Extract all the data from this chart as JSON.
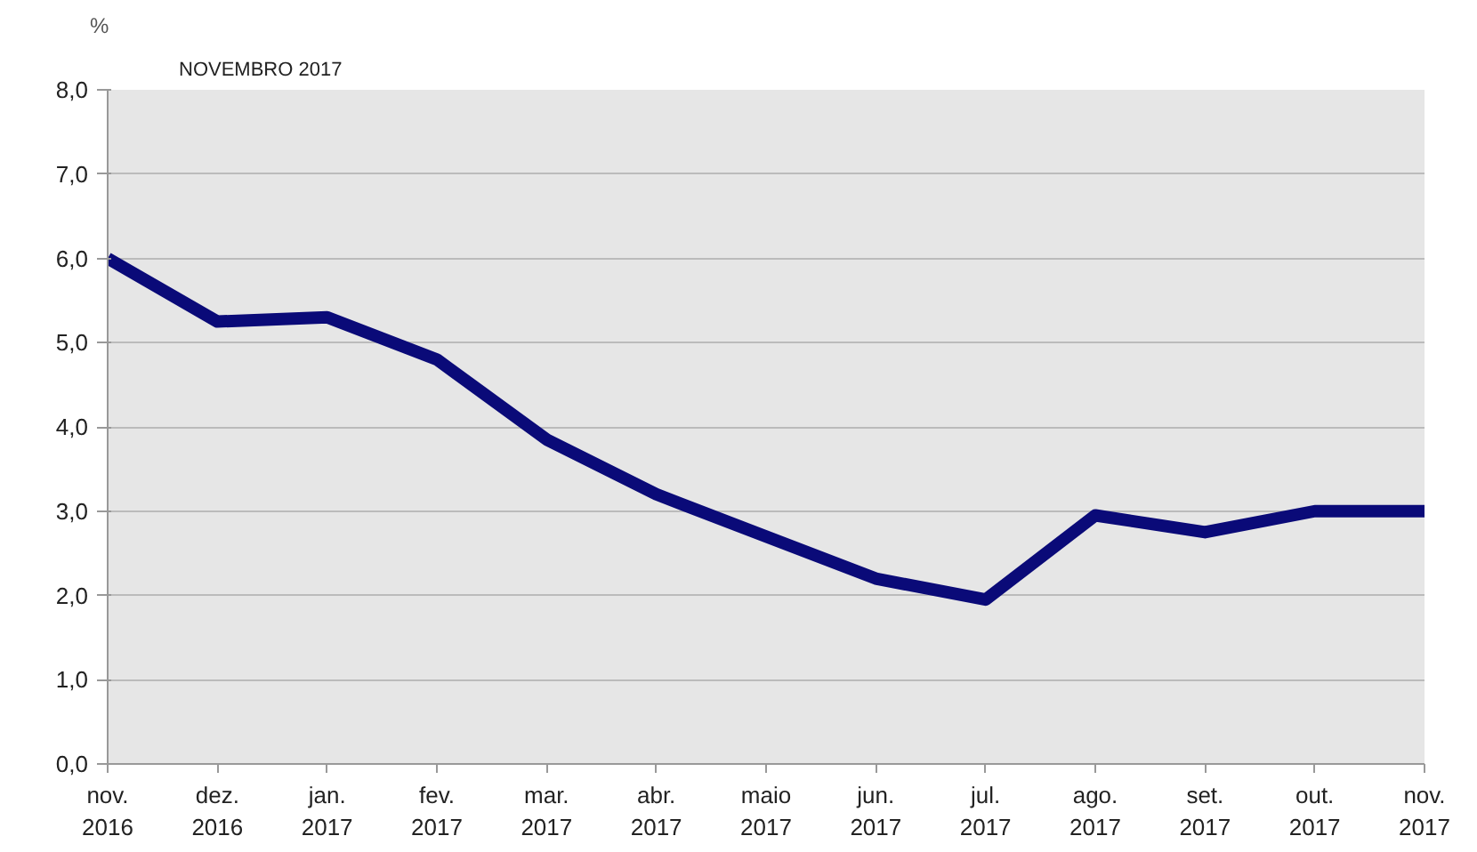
{
  "chart_data": {
    "type": "line",
    "title": "NOVEMBRO 2017",
    "ylabel": "%",
    "categories": [
      "nov.\n2016",
      "dez.\n2016",
      "jan.\n2017",
      "fev.\n2017",
      "mar.\n2017",
      "abr.\n2017",
      "maio\n2017",
      "jun.\n2017",
      "jul.\n2017",
      "ago.\n2017",
      "set.\n2017",
      "out.\n2017",
      "nov.\n2017"
    ],
    "series": [
      {
        "color": "#0a0a78",
        "values": [
          6.0,
          5.25,
          5.3,
          4.8,
          3.85,
          3.2,
          2.7,
          2.2,
          1.95,
          2.95,
          2.75,
          3.0,
          3.0
        ]
      }
    ],
    "ylim": [
      0,
      8
    ],
    "yticks": [
      {
        "value": 0,
        "label": "0,0"
      },
      {
        "value": 1,
        "label": "1,0"
      },
      {
        "value": 2,
        "label": "2,0"
      },
      {
        "value": 3,
        "label": "3,0"
      },
      {
        "value": 4,
        "label": "4,0"
      },
      {
        "value": 5,
        "label": "5,0"
      },
      {
        "value": 6,
        "label": "6,0"
      },
      {
        "value": 7,
        "label": "7,0"
      },
      {
        "value": 8,
        "label": "8,0"
      }
    ],
    "grid": "y",
    "marker": "none",
    "line_style": "solid"
  }
}
